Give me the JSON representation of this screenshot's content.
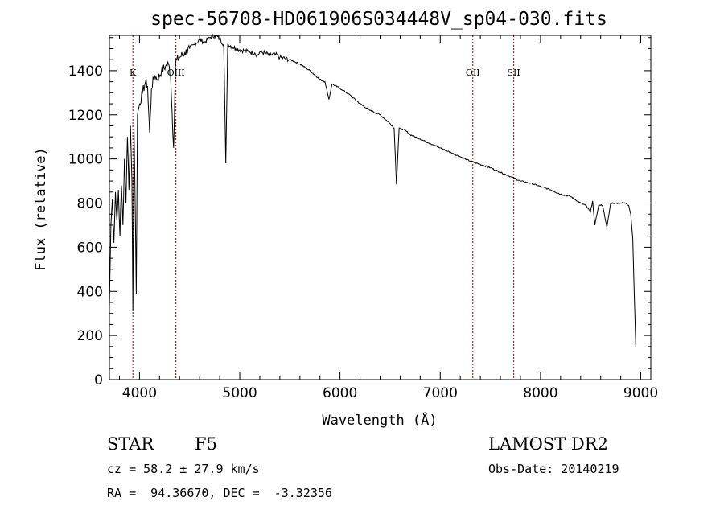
{
  "chart_data": {
    "type": "line",
    "title": "spec-56708-HD061906S034448V_sp04-030.fits",
    "xlabel": "Wavelength (Å)",
    "ylabel": "Flux (relative)",
    "xlim": [
      3700,
      9100
    ],
    "ylim": [
      0,
      1560
    ],
    "xticks": [
      "4000",
      "5000",
      "6000",
      "7000",
      "8000",
      "9000"
    ],
    "yticks": [
      "0",
      "200",
      "400",
      "600",
      "800",
      "1000",
      "1200",
      "1400"
    ],
    "line_color": "#000000",
    "marker_color": "#8b0000",
    "spectral_lines": [
      {
        "label": "K",
        "x": 3934
      },
      {
        "label": "OIII",
        "x": 4363
      },
      {
        "label": "OII",
        "x": 7325
      },
      {
        "label": "SII",
        "x": 7733
      }
    ],
    "series": [
      {
        "x": [
          3700,
          3715,
          3730,
          3745,
          3760,
          3775,
          3790,
          3805,
          3820,
          3835,
          3850,
          3865,
          3880,
          3895,
          3910,
          3925,
          3934,
          3945,
          3960,
          3968,
          3980,
          4000,
          4030,
          4060,
          4080,
          4101,
          4120,
          4150,
          4180,
          4220,
          4260,
          4290,
          4310,
          4340,
          4360,
          4400,
          4450,
          4500,
          4550,
          4600,
          4650,
          4700,
          4750,
          4800,
          4840,
          4861,
          4880,
          4920,
          4960,
          5000,
          5050,
          5100,
          5150,
          5180,
          5200,
          5250,
          5300,
          5350,
          5400,
          5500,
          5600,
          5700,
          5800,
          5850,
          5890,
          5920,
          6000,
          6100,
          6200,
          6300,
          6400,
          6500,
          6540,
          6563,
          6590,
          6650,
          6700,
          6800,
          6900,
          7000,
          7100,
          7200,
          7300,
          7400,
          7500,
          7600,
          7700,
          7800,
          7900,
          8000,
          8100,
          8200,
          8300,
          8400,
          8450,
          8498,
          8520,
          8542,
          8580,
          8620,
          8662,
          8700,
          8750,
          8800,
          8850,
          8880,
          8900,
          8920,
          8950
        ],
        "y": [
          330,
          700,
          820,
          620,
          850,
          720,
          860,
          650,
          880,
          700,
          1000,
          800,
          1100,
          860,
          1150,
          900,
          310,
          1150,
          700,
          390,
          1200,
          1250,
          1300,
          1350,
          1330,
          1120,
          1320,
          1380,
          1360,
          1400,
          1420,
          1430,
          1380,
          1050,
          1440,
          1460,
          1480,
          1500,
          1520,
          1540,
          1530,
          1550,
          1560,
          1545,
          1520,
          980,
          1520,
          1510,
          1500,
          1495,
          1490,
          1485,
          1480,
          1470,
          1485,
          1480,
          1470,
          1475,
          1460,
          1450,
          1430,
          1400,
          1360,
          1350,
          1270,
          1340,
          1320,
          1290,
          1250,
          1220,
          1200,
          1160,
          1140,
          885,
          1140,
          1130,
          1110,
          1090,
          1070,
          1050,
          1030,
          1010,
          990,
          975,
          960,
          940,
          920,
          900,
          890,
          875,
          860,
          840,
          830,
          800,
          790,
          760,
          810,
          700,
          790,
          790,
          690,
          800,
          800,
          800,
          800,
          790,
          750,
          640,
          150
        ]
      }
    ]
  },
  "info": {
    "object_class": "STAR",
    "subclass": "F5",
    "redshift": "cz = 58.2 ± 27.9 km/s",
    "coords": "RA =  94.36670, DEC =  -3.32356",
    "survey": "LAMOST DR2",
    "obs_date": "Obs-Date: 20140219"
  }
}
